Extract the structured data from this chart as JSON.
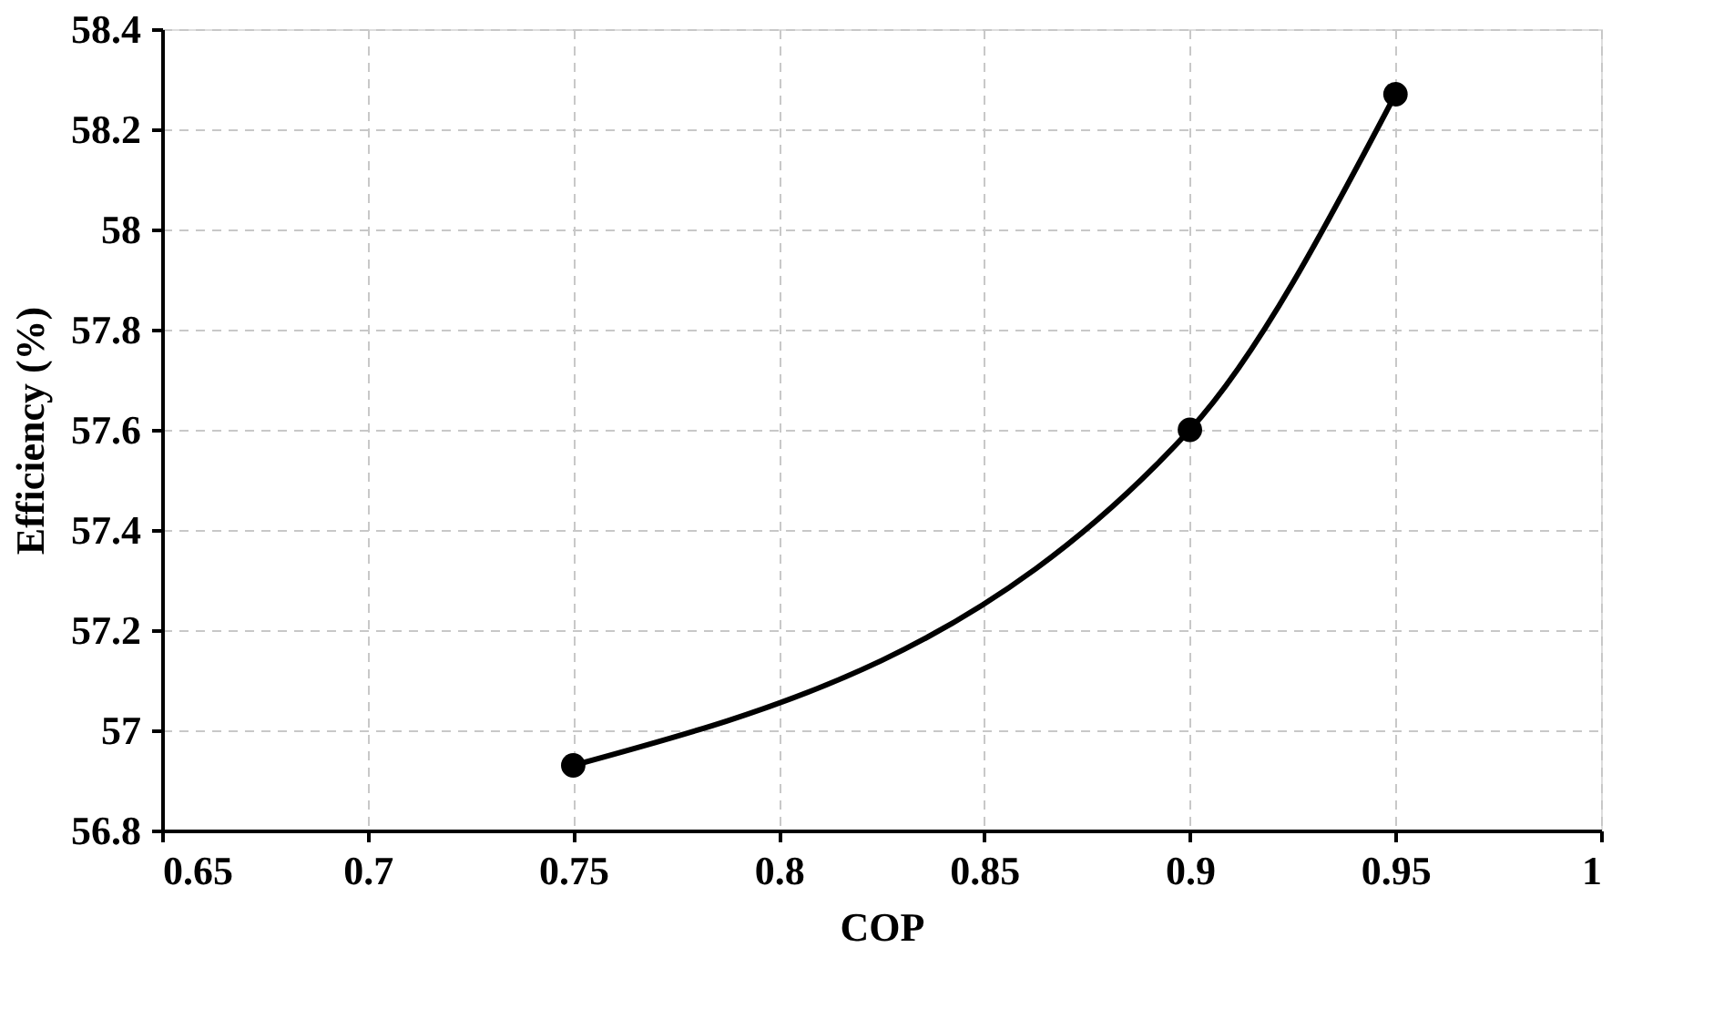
{
  "chart_data": {
    "type": "line",
    "xlabel": "COP",
    "ylabel": "Efficiency (%)",
    "x": [
      0.75,
      0.9,
      0.95
    ],
    "series": [
      {
        "color": "#000000",
        "values": [
          56.93,
          57.6,
          58.27
        ]
      }
    ],
    "xlim": [
      0.65,
      1
    ],
    "xticks": [
      0.65,
      0.7,
      0.75,
      0.8,
      0.85,
      0.9,
      0.95,
      1
    ],
    "ylim": [
      56.8,
      58.4
    ],
    "yticks": [
      56.8,
      57,
      57.2,
      57.4,
      57.6,
      57.8,
      58,
      58.2,
      58.4
    ],
    "grid": true,
    "marker": "circle",
    "line_style": "solid"
  }
}
